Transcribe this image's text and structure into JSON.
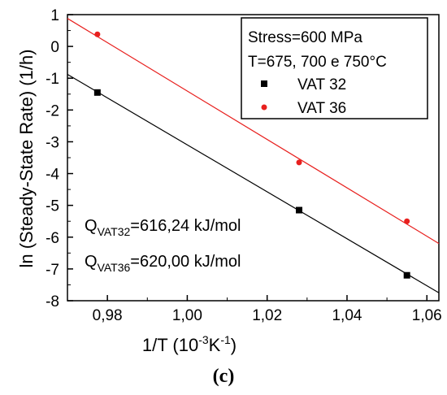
{
  "chart_data": {
    "type": "scatter",
    "title": "",
    "xlabel_prefix": "1/T (10",
    "xlabel_exp1": "-3",
    "xlabel_mid": "K",
    "xlabel_exp2": "-1",
    "xlabel_suffix": ")",
    "ylabel": "ln (Steady-State Rate) (1/h)",
    "xlim": [
      0.97,
      1.063
    ],
    "ylim": [
      -8,
      1
    ],
    "x_ticks": [
      "0,98",
      "1,00",
      "1,02",
      "1,04",
      "1,06"
    ],
    "x_tick_values": [
      0.98,
      1.0,
      1.02,
      1.04,
      1.06
    ],
    "y_ticks": [
      "1",
      "0",
      "-1",
      "-2",
      "-3",
      "-4",
      "-5",
      "-6",
      "-7",
      "-8"
    ],
    "y_tick_values": [
      1,
      0,
      -1,
      -2,
      -3,
      -4,
      -5,
      -6,
      -7,
      -8
    ],
    "legend_position": "top-right",
    "legend_title_lines": [
      "Stress=600 MPa",
      "T=675, 700 e 750°C"
    ],
    "series": [
      {
        "name": "VAT 32",
        "color": "#000000",
        "marker": "square",
        "x": [
          0.9775,
          1.028,
          1.055
        ],
        "y": [
          -1.45,
          -5.15,
          -7.2
        ],
        "fit": {
          "x": [
            0.97,
            1.063
          ],
          "y": [
            -0.88,
            -7.75
          ]
        }
      },
      {
        "name": "VAT 36",
        "color": "#e8201e",
        "marker": "circle",
        "x": [
          0.9775,
          1.028,
          1.055
        ],
        "y": [
          0.38,
          -3.65,
          -5.5
        ],
        "fit": {
          "x": [
            0.97,
            1.063
          ],
          "y": [
            0.88,
            -6.2
          ]
        }
      }
    ],
    "annotations": [
      {
        "main": "Q",
        "sub": "VAT32",
        "rest": "=616,24 kJ/mol"
      },
      {
        "main": "Q",
        "sub": "VAT36",
        "rest": "=620,00 kJ/mol"
      }
    ],
    "panel_label": "(c)"
  }
}
